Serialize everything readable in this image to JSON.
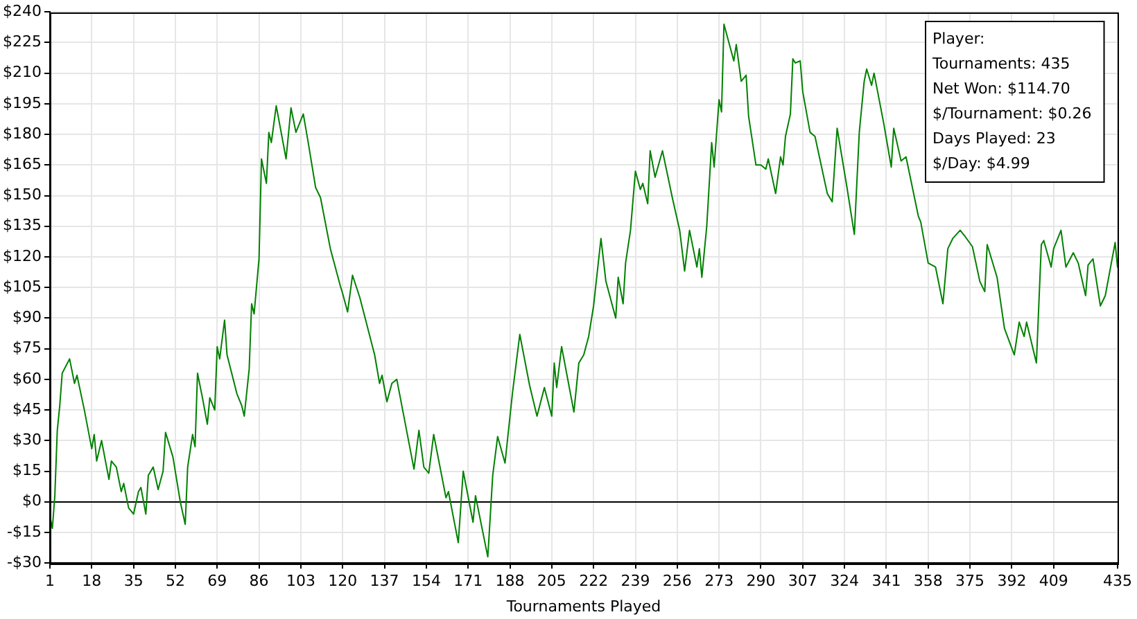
{
  "chart_data": {
    "type": "line",
    "xlabel": "Tournaments Played",
    "x": [
      1,
      2,
      3,
      4,
      5,
      6,
      9,
      11,
      12,
      15,
      18,
      19,
      20,
      22,
      25,
      26,
      28,
      30,
      31,
      33,
      35,
      37,
      38,
      40,
      41,
      43,
      45,
      47,
      48,
      51,
      54,
      56,
      57,
      59,
      60,
      61,
      63,
      65,
      66,
      68,
      69,
      70,
      72,
      73,
      77,
      79,
      80,
      82,
      83,
      84,
      86,
      87,
      89,
      90,
      91,
      93,
      97,
      99,
      101,
      104,
      106,
      109,
      111,
      115,
      119,
      120,
      122,
      124,
      127,
      133,
      135,
      136,
      138,
      140,
      142,
      149,
      151,
      153,
      155,
      157,
      162,
      163,
      167,
      169,
      173,
      174,
      179,
      181,
      183,
      186,
      189,
      192,
      196,
      199,
      202,
      205,
      206,
      207,
      209,
      214,
      216,
      218,
      220,
      222,
      225,
      227,
      231,
      232,
      234,
      235,
      237,
      239,
      241,
      242,
      244,
      245,
      247,
      250,
      254,
      257,
      259,
      261,
      264,
      265,
      266,
      268,
      270,
      271,
      273,
      274,
      275,
      279,
      280,
      282,
      284,
      285,
      288,
      290,
      292,
      293,
      296,
      298,
      299,
      300,
      302,
      303,
      304,
      306,
      307,
      310,
      312,
      317,
      319,
      321,
      325,
      328,
      330,
      332,
      333,
      335,
      336,
      340,
      343,
      344,
      347,
      349,
      354,
      355,
      358,
      361,
      364,
      366,
      368,
      371,
      373,
      376,
      379,
      381,
      382,
      386,
      389,
      393,
      395,
      397,
      398,
      402,
      404,
      405,
      408,
      409,
      412,
      414,
      417,
      419,
      422,
      423,
      425,
      428,
      430,
      434,
      435
    ],
    "series": [
      {
        "color": "#008000",
        "values": [
          -7,
          -13,
          3,
          35,
          47,
          63,
          70,
          58,
          62,
          45,
          26,
          33,
          20,
          30,
          11,
          20,
          17,
          5,
          9,
          -3,
          -6,
          5,
          7,
          -6,
          13,
          17,
          6,
          15,
          34,
          22,
          0,
          -11,
          17,
          33,
          27,
          63,
          51,
          38,
          51,
          45,
          76,
          70,
          89,
          72,
          53,
          47,
          42,
          65,
          97,
          92,
          119,
          168,
          156,
          181,
          176,
          194,
          168,
          193,
          181,
          190,
          176,
          154,
          149,
          124,
          106,
          102,
          93,
          111,
          100,
          72,
          58,
          62,
          49,
          58,
          60,
          16,
          35,
          17,
          14,
          33,
          2,
          5,
          -20,
          15,
          -10,
          3,
          -27,
          13,
          32,
          19,
          53,
          82,
          57,
          42,
          56,
          42,
          68,
          56,
          76,
          44,
          68,
          72,
          81,
          96,
          129,
          108,
          90,
          110,
          97,
          117,
          133,
          162,
          153,
          156,
          146,
          172,
          159,
          172,
          149,
          133,
          113,
          133,
          115,
          124,
          110,
          135,
          176,
          164,
          197,
          191,
          234,
          216,
          224,
          206,
          209,
          189,
          165,
          165,
          163,
          168,
          151,
          169,
          165,
          179,
          190,
          217,
          215,
          216,
          201,
          181,
          179,
          151,
          147,
          183,
          154,
          131,
          181,
          206,
          212,
          204,
          210,
          185,
          164,
          183,
          167,
          169,
          140,
          137,
          117,
          115,
          97,
          124,
          129,
          133,
          130,
          125,
          108,
          103,
          126,
          110,
          85,
          72,
          88,
          81,
          88,
          68,
          126,
          128,
          115,
          124,
          133,
          115,
          122,
          117,
          101,
          116,
          119,
          96,
          101,
          127,
          114.7
        ]
      }
    ],
    "xlim": [
      1,
      435
    ],
    "xticks": [
      1,
      18,
      35,
      52,
      69,
      86,
      103,
      120,
      137,
      154,
      171,
      188,
      205,
      222,
      239,
      256,
      273,
      290,
      307,
      324,
      341,
      358,
      375,
      392,
      409,
      435
    ],
    "ylim": [
      -30,
      240
    ],
    "yticks": [
      {
        "value": -30,
        "label": "-$30"
      },
      {
        "value": -15,
        "label": "-$15"
      },
      {
        "value": 0,
        "label": "$0"
      },
      {
        "value": 15,
        "label": "$15"
      },
      {
        "value": 30,
        "label": "$30"
      },
      {
        "value": 45,
        "label": "$45"
      },
      {
        "value": 60,
        "label": "$60"
      },
      {
        "value": 75,
        "label": "$75"
      },
      {
        "value": 90,
        "label": "$90"
      },
      {
        "value": 105,
        "label": "$105"
      },
      {
        "value": 120,
        "label": "$120"
      },
      {
        "value": 135,
        "label": "$135"
      },
      {
        "value": 150,
        "label": "$150"
      },
      {
        "value": 165,
        "label": "$165"
      },
      {
        "value": 180,
        "label": "$180"
      },
      {
        "value": 195,
        "label": "$195"
      },
      {
        "value": 210,
        "label": "$210"
      },
      {
        "value": 225,
        "label": "$225"
      },
      {
        "value": 240,
        "label": "$240"
      }
    ],
    "ref_lines": [
      {
        "axis": "y",
        "value": 0,
        "color": "#000000"
      }
    ],
    "annotations": [
      "Player:",
      "Tournaments: 435",
      "Net Won: $114.70",
      "$/Tournament: $0.26",
      "Days Played: 23",
      "$/Day: $4.99"
    ],
    "grid": true,
    "legend": false,
    "marker": "none",
    "line_style": "solid"
  }
}
